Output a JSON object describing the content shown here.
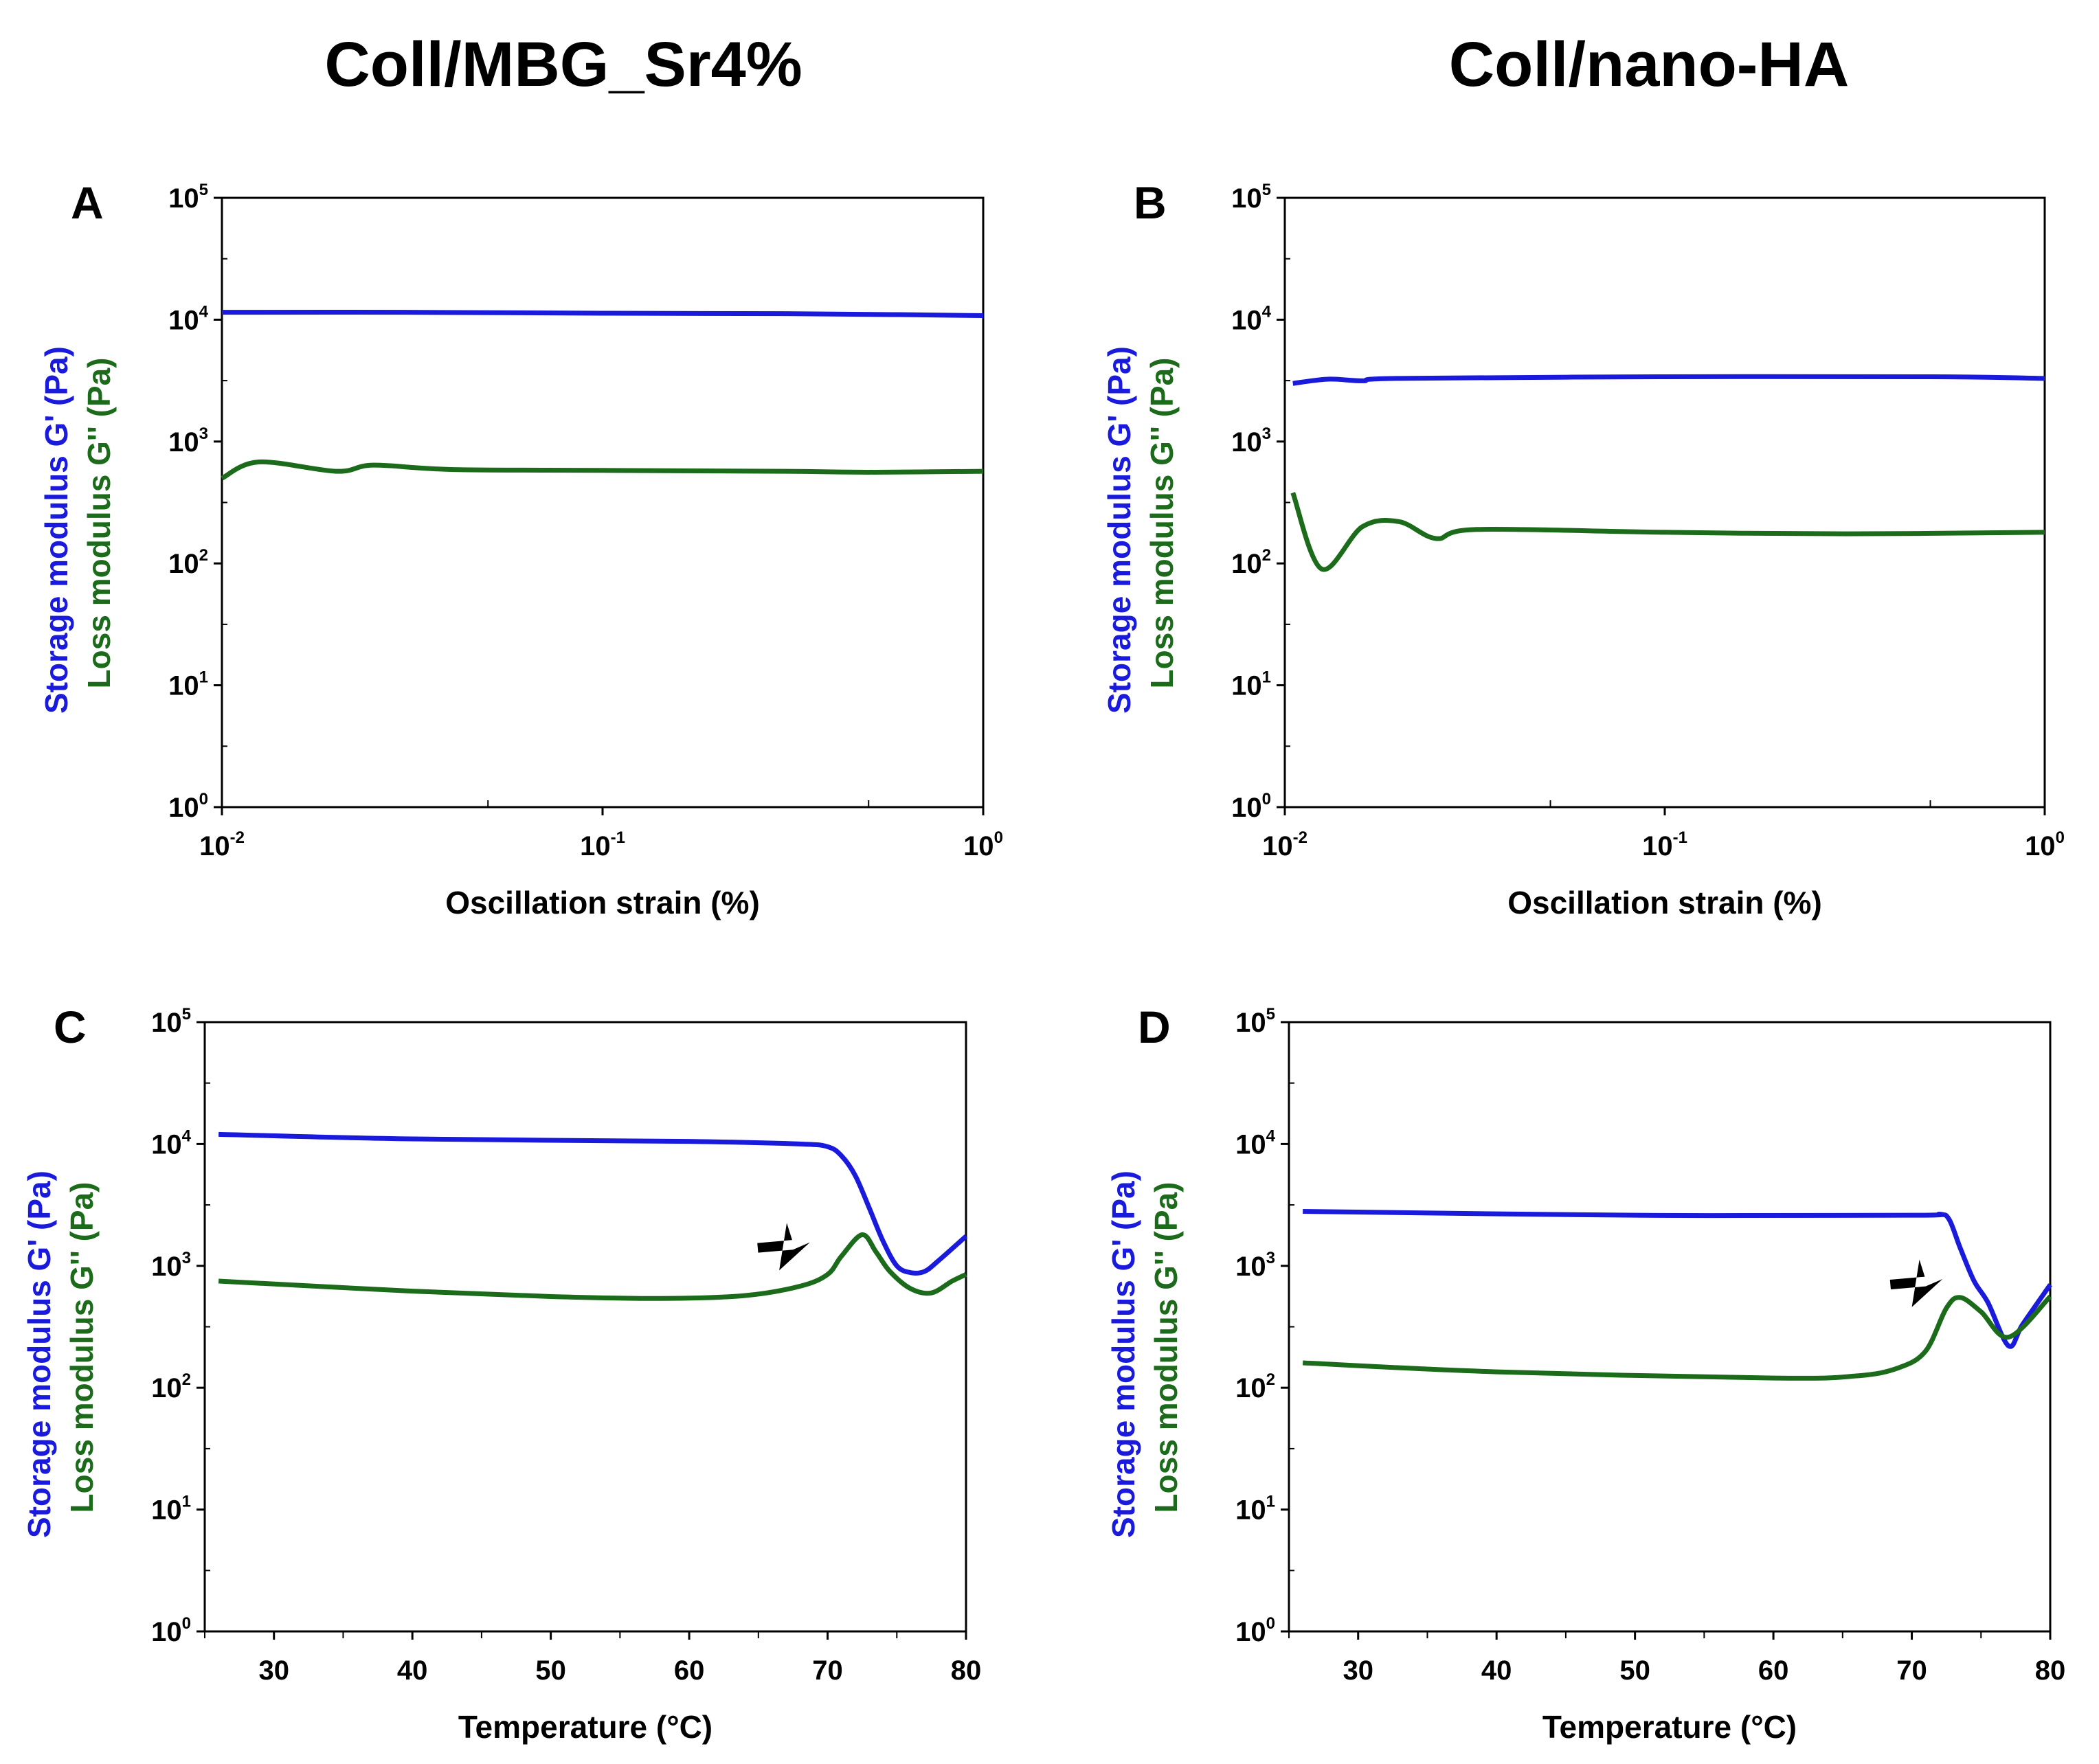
{
  "titles": [
    "Coll/MBG_Sr4%",
    "Coll/nano-HA"
  ],
  "colors": {
    "storage": "#1a1adc",
    "loss": "#1b6b1b",
    "axis": "#000000"
  },
  "chart_data": [
    {
      "panel": "A",
      "type": "line",
      "xscale": "log",
      "yscale": "log",
      "xlabel": "Oscillation strain (%)",
      "ylabel_storage": "Storage modulus G' (Pa)",
      "ylabel_loss": "Loss modulus G'' (Pa)",
      "xlim": [
        0.01,
        1
      ],
      "ylim": [
        1,
        100000
      ],
      "xticks": [
        {
          "base": "10",
          "exp": "-2",
          "v": 0.01
        },
        {
          "base": "10",
          "exp": "-1",
          "v": 0.1
        },
        {
          "base": "10",
          "exp": "0",
          "v": 1
        }
      ],
      "yticks": [
        {
          "base": "10",
          "exp": "0",
          "v": 1
        },
        {
          "base": "10",
          "exp": "1",
          "v": 10
        },
        {
          "base": "10",
          "exp": "2",
          "v": 100
        },
        {
          "base": "10",
          "exp": "3",
          "v": 1000
        },
        {
          "base": "10",
          "exp": "4",
          "v": 10000
        },
        {
          "base": "10",
          "exp": "5",
          "v": 100000
        }
      ],
      "series": [
        {
          "name": "Storage modulus G'",
          "x": [
            0.01,
            0.03,
            0.1,
            0.3,
            0.6,
            1
          ],
          "y": [
            11500,
            11500,
            11300,
            11200,
            11000,
            10800
          ]
        },
        {
          "name": "Loss modulus G''",
          "x": [
            0.01,
            0.0125,
            0.02,
            0.025,
            0.04,
            0.1,
            0.3,
            0.5,
            1
          ],
          "y": [
            500,
            680,
            570,
            640,
            590,
            580,
            570,
            560,
            570
          ]
        }
      ]
    },
    {
      "panel": "B",
      "type": "line",
      "xscale": "log",
      "yscale": "log",
      "xlabel": "Oscillation strain (%)",
      "ylabel_storage": "Storage modulus G' (Pa)",
      "ylabel_loss": "Loss modulus G'' (Pa)",
      "xlim": [
        0.01,
        1
      ],
      "ylim": [
        1,
        100000
      ],
      "xticks": [
        {
          "base": "10",
          "exp": "-2",
          "v": 0.01
        },
        {
          "base": "10",
          "exp": "-1",
          "v": 0.1
        },
        {
          "base": "10",
          "exp": "0",
          "v": 1
        }
      ],
      "yticks": [
        {
          "base": "10",
          "exp": "0",
          "v": 1
        },
        {
          "base": "10",
          "exp": "1",
          "v": 10
        },
        {
          "base": "10",
          "exp": "2",
          "v": 100
        },
        {
          "base": "10",
          "exp": "3",
          "v": 1000
        },
        {
          "base": "10",
          "exp": "4",
          "v": 10000
        },
        {
          "base": "10",
          "exp": "5",
          "v": 100000
        }
      ],
      "series": [
        {
          "name": "Storage modulus G'",
          "x": [
            0.0105,
            0.013,
            0.016,
            0.02,
            0.1,
            0.5,
            1
          ],
          "y": [
            3000,
            3250,
            3150,
            3300,
            3400,
            3400,
            3300
          ]
        },
        {
          "name": "Loss modulus G''",
          "x": [
            0.0105,
            0.0125,
            0.016,
            0.02,
            0.025,
            0.032,
            0.1,
            0.3,
            1
          ],
          "y": [
            380,
            90,
            200,
            220,
            160,
            190,
            180,
            175,
            180
          ]
        }
      ]
    },
    {
      "panel": "C",
      "type": "line",
      "xscale": "linear",
      "yscale": "log",
      "xlabel": "Temperature (°C)",
      "ylabel_storage": "Storage modulus G' (Pa)",
      "ylabel_loss": "Loss modulus G'' (Pa)",
      "xlim": [
        25,
        80
      ],
      "ylim": [
        1,
        100000
      ],
      "xticks": [
        {
          "base": "30",
          "exp": "",
          "v": 30
        },
        {
          "base": "40",
          "exp": "",
          "v": 40
        },
        {
          "base": "50",
          "exp": "",
          "v": 50
        },
        {
          "base": "60",
          "exp": "",
          "v": 60
        },
        {
          "base": "70",
          "exp": "",
          "v": 70
        },
        {
          "base": "80",
          "exp": "",
          "v": 80
        }
      ],
      "yticks": [
        {
          "base": "10",
          "exp": "0",
          "v": 1
        },
        {
          "base": "10",
          "exp": "1",
          "v": 10
        },
        {
          "base": "10",
          "exp": "2",
          "v": 100
        },
        {
          "base": "10",
          "exp": "3",
          "v": 1000
        },
        {
          "base": "10",
          "exp": "4",
          "v": 10000
        },
        {
          "base": "10",
          "exp": "5",
          "v": 100000
        }
      ],
      "arrow": {
        "x": 67,
        "y": 2000
      },
      "series": [
        {
          "name": "Storage modulus G'",
          "x": [
            26,
            40,
            60,
            68,
            70,
            71,
            72,
            73,
            74,
            75,
            76,
            77,
            78,
            80
          ],
          "y": [
            12000,
            11000,
            10500,
            10000,
            9500,
            8000,
            5500,
            3000,
            1600,
            1000,
            880,
            900,
            1100,
            1750
          ]
        },
        {
          "name": "Loss modulus G''",
          "x": [
            26,
            40,
            50,
            58,
            64,
            68,
            70,
            71,
            72.5,
            73.5,
            74.5,
            76,
            77.5,
            79,
            80
          ],
          "y": [
            750,
            620,
            560,
            540,
            570,
            680,
            850,
            1200,
            1800,
            1300,
            900,
            650,
            600,
            750,
            850
          ]
        }
      ]
    },
    {
      "panel": "D",
      "type": "line",
      "xscale": "linear",
      "yscale": "log",
      "xlabel": "Temperature (°C)",
      "ylabel_storage": "Storage modulus G' (Pa)",
      "ylabel_loss": "Loss modulus G'' (Pa)",
      "xlim": [
        25,
        80
      ],
      "ylim": [
        1,
        100000
      ],
      "xticks": [
        {
          "base": "30",
          "exp": "",
          "v": 30
        },
        {
          "base": "40",
          "exp": "",
          "v": 40
        },
        {
          "base": "50",
          "exp": "",
          "v": 50
        },
        {
          "base": "60",
          "exp": "",
          "v": 60
        },
        {
          "base": "70",
          "exp": "",
          "v": 70
        },
        {
          "base": "80",
          "exp": "",
          "v": 80
        }
      ],
      "yticks": [
        {
          "base": "10",
          "exp": "0",
          "v": 1
        },
        {
          "base": "10",
          "exp": "1",
          "v": 10
        },
        {
          "base": "10",
          "exp": "2",
          "v": 100
        },
        {
          "base": "10",
          "exp": "3",
          "v": 1000
        },
        {
          "base": "10",
          "exp": "4",
          "v": 10000
        },
        {
          "base": "10",
          "exp": "5",
          "v": 100000
        }
      ],
      "arrow": {
        "x": 70.5,
        "y": 1000
      },
      "series": [
        {
          "name": "Storage modulus G'",
          "x": [
            26,
            50,
            70,
            72,
            72.7,
            73.5,
            74.5,
            75.5,
            77,
            78,
            80
          ],
          "y": [
            2800,
            2600,
            2600,
            2650,
            2400,
            1400,
            750,
            500,
            220,
            330,
            700
          ]
        },
        {
          "name": "Loss modulus G''",
          "x": [
            26,
            40,
            60,
            66,
            69,
            71,
            72.5,
            73.5,
            75,
            77,
            80
          ],
          "y": [
            160,
            135,
            120,
            125,
            145,
            200,
            450,
            550,
            420,
            260,
            560
          ]
        }
      ]
    }
  ]
}
